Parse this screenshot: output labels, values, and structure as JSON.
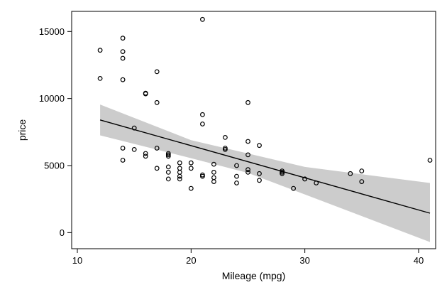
{
  "chart_data": {
    "type": "scatter",
    "title": "",
    "xlabel": "Mileage (mpg)",
    "ylabel": "price",
    "xlim": [
      9.5,
      41.5
    ],
    "ylim": [
      -1200,
      16500
    ],
    "xticks": [
      10,
      20,
      30,
      40
    ],
    "yticks": [
      0,
      5000,
      10000,
      15000
    ],
    "x_tick_labels": [
      "10",
      "20",
      "30",
      "40"
    ],
    "y_tick_labels": [
      "0",
      "5000",
      "10000",
      "15000"
    ],
    "grid": false,
    "legend": "none",
    "colors": {
      "points": "#000000",
      "fit_line": "#000000",
      "ci_band": "#cccccc",
      "frame": "#000000",
      "background": "#ffffff"
    },
    "series": [
      {
        "type": "scatter",
        "points": [
          [
            12,
            13600
          ],
          [
            12,
            11500
          ],
          [
            14,
            14500
          ],
          [
            14,
            13500
          ],
          [
            14,
            13000
          ],
          [
            14,
            11400
          ],
          [
            14,
            6300
          ],
          [
            14,
            5400
          ],
          [
            15,
            7800
          ],
          [
            15,
            6200
          ],
          [
            16,
            10400
          ],
          [
            16,
            10350
          ],
          [
            16,
            5900
          ],
          [
            16,
            5700
          ],
          [
            17,
            12000
          ],
          [
            17,
            9700
          ],
          [
            17,
            6300
          ],
          [
            17,
            4800
          ],
          [
            18,
            5900
          ],
          [
            18,
            5800
          ],
          [
            18,
            5700
          ],
          [
            18,
            4900
          ],
          [
            18,
            4500
          ],
          [
            18,
            4000
          ],
          [
            19,
            5200
          ],
          [
            19,
            4800
          ],
          [
            19,
            4500
          ],
          [
            19,
            4200
          ],
          [
            19,
            4000
          ],
          [
            20,
            5200
          ],
          [
            20,
            4800
          ],
          [
            20,
            3300
          ],
          [
            21,
            15900
          ],
          [
            21,
            8800
          ],
          [
            21,
            8100
          ],
          [
            21,
            4300
          ],
          [
            21,
            4200
          ],
          [
            22,
            5100
          ],
          [
            22,
            4500
          ],
          [
            22,
            4100
          ],
          [
            22,
            3800
          ],
          [
            23,
            7100
          ],
          [
            23,
            6300
          ],
          [
            23,
            6200
          ],
          [
            24,
            5000
          ],
          [
            24,
            4200
          ],
          [
            24,
            3700
          ],
          [
            25,
            9700
          ],
          [
            25,
            6800
          ],
          [
            25,
            5800
          ],
          [
            25,
            4700
          ],
          [
            25,
            4500
          ],
          [
            26,
            6500
          ],
          [
            26,
            4400
          ],
          [
            26,
            3900
          ],
          [
            28,
            4600
          ],
          [
            28,
            4500
          ],
          [
            28,
            4400
          ],
          [
            29,
            3300
          ],
          [
            30,
            4000
          ],
          [
            30,
            4000
          ],
          [
            31,
            3700
          ],
          [
            34,
            4400
          ],
          [
            35,
            4600
          ],
          [
            35,
            3800
          ],
          [
            41,
            5400
          ]
        ]
      },
      {
        "type": "line",
        "x": [
          12,
          41
        ],
        "y": [
          8400,
          1450
        ]
      },
      {
        "type": "area",
        "x": [
          12,
          20,
          25,
          30,
          41
        ],
        "upper": [
          9550,
          6900,
          5900,
          4900,
          3700
        ],
        "lower": [
          7250,
          5550,
          4450,
          2850,
          -700
        ]
      }
    ]
  }
}
